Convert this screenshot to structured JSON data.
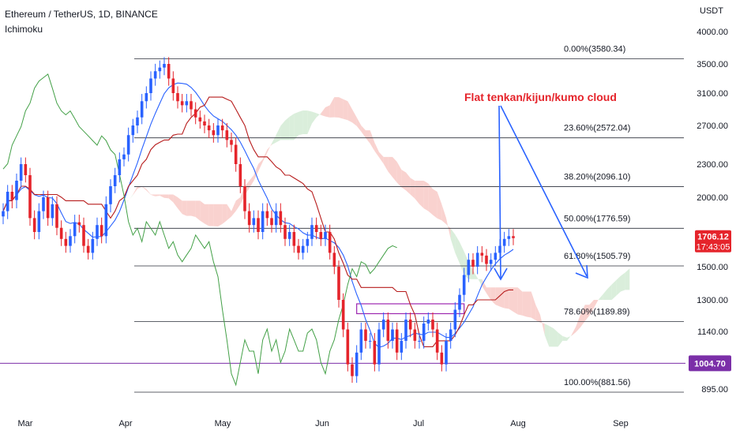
{
  "header": {
    "symbol": "Ethereum / TetherUS, 1D, BINANCE",
    "indicator": "Ichimoku"
  },
  "chart_data": {
    "type": "candlestick",
    "currency_label": "USDT",
    "y_ticks": [
      4000,
      3500,
      3100,
      2700,
      2300,
      2000,
      1500,
      1300,
      1140,
      895
    ],
    "y_tick_labels": [
      "4000.00",
      "3500.00",
      "3100.00",
      "2700.00",
      "2300.00",
      "2000.00",
      "1500.00",
      "1300.00",
      "1140.00",
      "895.00"
    ],
    "x_tick_labels": [
      "Mar",
      "Apr",
      "May",
      "Jun",
      "Jul",
      "Aug",
      "Sep"
    ],
    "price_label": {
      "value": "1706.12",
      "countdown": "17:43:05",
      "color": "#e5242b"
    },
    "horizontal_level": {
      "value": "1004.70",
      "color": "#7b2fa8"
    },
    "fib_levels": [
      {
        "label": "0.00%(3580.34)",
        "price": 3580.34
      },
      {
        "label": "23.60%(2572.04)",
        "price": 2572.04
      },
      {
        "label": "38.20%(2096.10)",
        "price": 2096.1
      },
      {
        "label": "50.00%(1776.59)",
        "price": 1776.59
      },
      {
        "label": "61.80%(1505.79)",
        "price": 1505.79
      },
      {
        "label": "78.60%(1189.89)",
        "price": 1189.89
      },
      {
        "label": "100.00%(881.56)",
        "price": 881.56
      }
    ],
    "annotation": {
      "text": "Flat tenkan/kijun/kumo cloud",
      "color": "#e5242b"
    },
    "consolidation_zone": {
      "low": 1230,
      "high": 1280,
      "color": "#9c27b0"
    },
    "colors": {
      "up_candle": "#2962ff",
      "down_candle": "#e5242b",
      "tenkan": "#2962ff",
      "kijun": "#b71c1c",
      "chikou": "#43a047",
      "cloud_bear": "#f7c3bf",
      "cloud_bull": "#cde8cf",
      "annotation_arrow": "#2962ff"
    },
    "candles_close_path": [
      1900,
      2050,
      1980,
      2150,
      2300,
      2200,
      1850,
      1750,
      1900,
      2000,
      1850,
      1950,
      1780,
      1700,
      1650,
      1720,
      1820,
      1800,
      1650,
      1600,
      1700,
      1800,
      1720,
      1950,
      2100,
      2200,
      2350,
      2400,
      2600,
      2700,
      2800,
      3000,
      3100,
      3300,
      3400,
      3450,
      3500,
      3300,
      3100,
      3000,
      2950,
      3000,
      2900,
      2800,
      2750,
      2700,
      2650,
      2600,
      2700,
      2650,
      2550,
      2500,
      2300,
      2100,
      1900,
      1800,
      1850,
      1750,
      1900,
      1850,
      1800,
      1900,
      1800,
      1700,
      1750,
      1650,
      1600,
      1650,
      1700,
      1800,
      1750,
      1700,
      1750,
      1600,
      1500,
      1300,
      1150,
      1000,
      950,
      1050,
      1150,
      1100,
      1100,
      1000,
      1150,
      1200,
      1100,
      1150,
      1050,
      1100,
      1200,
      1150,
      1100,
      1100,
      1180,
      1200,
      1150,
      1050,
      1000,
      1100,
      1150,
      1250,
      1330,
      1450,
      1550,
      1500,
      1600,
      1580,
      1520,
      1550,
      1600,
      1650,
      1700,
      1720,
      1706
    ]
  }
}
